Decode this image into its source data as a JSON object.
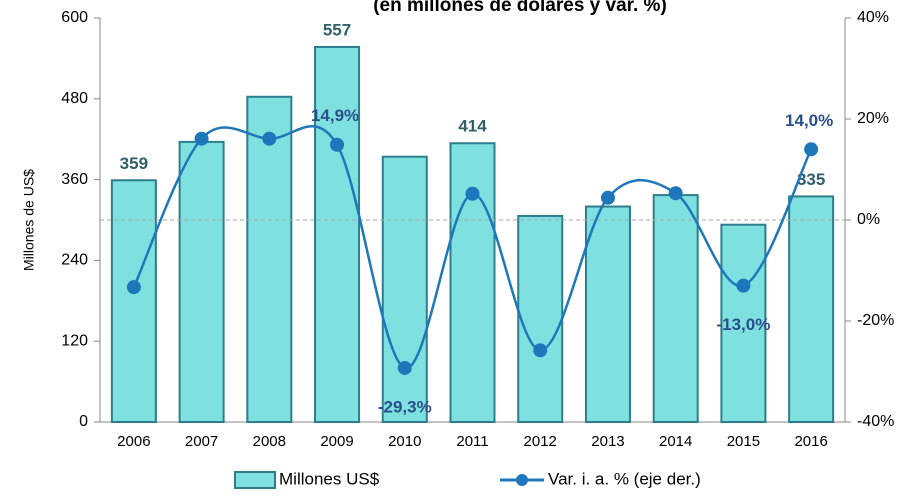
{
  "chart_data": {
    "type": "bar-line",
    "title": "(en millones de dólares y var. %)",
    "ylabel": "Millones de US$",
    "categories": [
      "2006",
      "2007",
      "2008",
      "2009",
      "2010",
      "2011",
      "2012",
      "2013",
      "2014",
      "2015",
      "2016"
    ],
    "series": [
      {
        "name": "Millones US$",
        "type": "bar",
        "color": "#7fe0e0",
        "values": [
          359,
          416,
          483,
          557,
          394,
          414,
          306,
          320,
          337,
          293,
          335
        ],
        "value_labels": [
          "359",
          null,
          null,
          "557",
          null,
          "414",
          null,
          null,
          null,
          null,
          "335"
        ]
      },
      {
        "name": "Var. i. a. % (eje der.)",
        "type": "line",
        "axis": "y2",
        "color": "#1f77bb",
        "values": [
          -13.3,
          16.1,
          16.1,
          14.9,
          -29.3,
          5.2,
          -25.8,
          4.4,
          5.3,
          -13.0,
          14.0
        ],
        "value_labels": [
          null,
          null,
          null,
          "14,9%",
          "-29,3%",
          null,
          null,
          null,
          null,
          "-13,0%",
          "14,0%"
        ]
      }
    ],
    "ylim": [
      0,
      600
    ],
    "yticks": [
      0,
      120,
      240,
      360,
      480,
      600
    ],
    "y2lim": [
      -40,
      40
    ],
    "y2ticks": [
      {
        "value": -40,
        "label": "-40%"
      },
      {
        "value": -20,
        "label": "-20%"
      },
      {
        "value": 0,
        "label": "0%"
      },
      {
        "value": 20,
        "label": "20%"
      },
      {
        "value": 40,
        "label": "40%"
      }
    ],
    "legend": "bottom"
  }
}
